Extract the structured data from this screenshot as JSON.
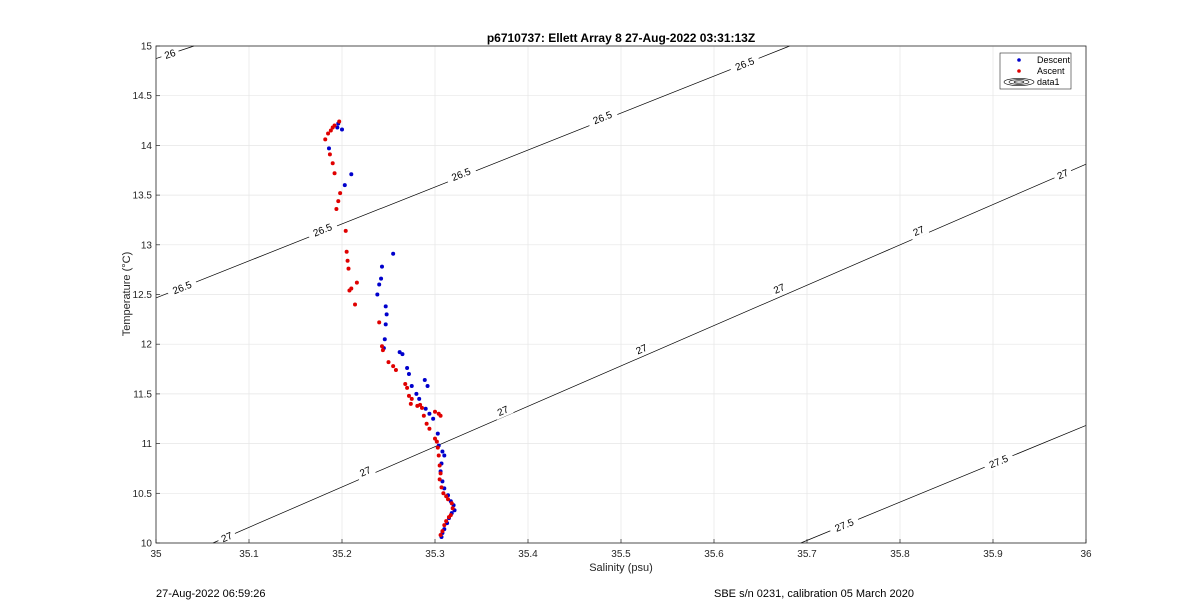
{
  "chart_data": {
    "type": "scatter",
    "title": "p6710737: Ellett Array 8 27-Aug-2022 03:31:13Z",
    "xlabel": "Salinity (psu)",
    "ylabel": "Temperature (°C)",
    "xlim": [
      35,
      36
    ],
    "ylim": [
      10,
      15
    ],
    "xticks": [
      "35",
      "35.1",
      "35.2",
      "35.3",
      "35.4",
      "35.5",
      "35.6",
      "35.7",
      "35.8",
      "35.9",
      "36"
    ],
    "yticks": [
      "10",
      "10.5",
      "11",
      "11.5",
      "12",
      "12.5",
      "13",
      "13.5",
      "14",
      "14.5",
      "15"
    ],
    "grid": true,
    "legend_position": "top-right",
    "legend": [
      "Descent",
      "Ascent",
      "data1"
    ],
    "series": [
      {
        "name": "Descent",
        "color": "#0000cc",
        "points": [
          [
            35.196,
            14.22
          ],
          [
            35.195,
            14.18
          ],
          [
            35.2,
            14.16
          ],
          [
            35.186,
            13.97
          ],
          [
            35.203,
            13.6
          ],
          [
            35.21,
            13.71
          ],
          [
            35.255,
            12.91
          ],
          [
            35.243,
            12.78
          ],
          [
            35.242,
            12.66
          ],
          [
            35.24,
            12.6
          ],
          [
            35.238,
            12.5
          ],
          [
            35.247,
            12.38
          ],
          [
            35.248,
            12.3
          ],
          [
            35.247,
            12.2
          ],
          [
            35.246,
            12.05
          ],
          [
            35.245,
            11.96
          ],
          [
            35.262,
            11.92
          ],
          [
            35.265,
            11.9
          ],
          [
            35.27,
            11.76
          ],
          [
            35.272,
            11.7
          ],
          [
            35.275,
            11.58
          ],
          [
            35.28,
            11.5
          ],
          [
            35.283,
            11.45
          ],
          [
            35.289,
            11.64
          ],
          [
            35.292,
            11.58
          ],
          [
            35.29,
            11.35
          ],
          [
            35.294,
            11.3
          ],
          [
            35.298,
            11.25
          ],
          [
            35.303,
            11.1
          ],
          [
            35.304,
            10.98
          ],
          [
            35.308,
            10.92
          ],
          [
            35.31,
            10.88
          ],
          [
            35.307,
            10.8
          ],
          [
            35.306,
            10.72
          ],
          [
            35.308,
            10.62
          ],
          [
            35.31,
            10.55
          ],
          [
            35.314,
            10.48
          ],
          [
            35.317,
            10.42
          ],
          [
            35.32,
            10.38
          ],
          [
            35.321,
            10.33
          ],
          [
            35.318,
            10.3
          ],
          [
            35.315,
            10.25
          ],
          [
            35.313,
            10.2
          ],
          [
            35.31,
            10.14
          ],
          [
            35.308,
            10.1
          ],
          [
            35.307,
            10.06
          ]
        ]
      },
      {
        "name": "Ascent",
        "color": "#e00000",
        "points": [
          [
            35.197,
            14.24
          ],
          [
            35.192,
            14.2
          ],
          [
            35.19,
            14.18
          ],
          [
            35.188,
            14.15
          ],
          [
            35.185,
            14.12
          ],
          [
            35.182,
            14.06
          ],
          [
            35.187,
            13.91
          ],
          [
            35.19,
            13.82
          ],
          [
            35.192,
            13.72
          ],
          [
            35.198,
            13.52
          ],
          [
            35.196,
            13.44
          ],
          [
            35.194,
            13.36
          ],
          [
            35.204,
            13.14
          ],
          [
            35.205,
            12.93
          ],
          [
            35.206,
            12.84
          ],
          [
            35.207,
            12.76
          ],
          [
            35.208,
            12.54
          ],
          [
            35.21,
            12.56
          ],
          [
            35.216,
            12.62
          ],
          [
            35.214,
            12.4
          ],
          [
            35.24,
            12.22
          ],
          [
            35.243,
            11.98
          ],
          [
            35.244,
            11.94
          ],
          [
            35.25,
            11.82
          ],
          [
            35.255,
            11.78
          ],
          [
            35.258,
            11.74
          ],
          [
            35.268,
            11.6
          ],
          [
            35.27,
            11.56
          ],
          [
            35.272,
            11.48
          ],
          [
            35.274,
            11.4
          ],
          [
            35.275,
            11.45
          ],
          [
            35.281,
            11.38
          ],
          [
            35.284,
            11.39
          ],
          [
            35.286,
            11.36
          ],
          [
            35.288,
            11.28
          ],
          [
            35.291,
            11.2
          ],
          [
            35.294,
            11.15
          ],
          [
            35.3,
            11.32
          ],
          [
            35.304,
            11.3
          ],
          [
            35.306,
            11.28
          ],
          [
            35.3,
            11.05
          ],
          [
            35.302,
            11.02
          ],
          [
            35.303,
            10.96
          ],
          [
            35.304,
            10.88
          ],
          [
            35.305,
            10.78
          ],
          [
            35.306,
            10.7
          ],
          [
            35.305,
            10.64
          ],
          [
            35.307,
            10.56
          ],
          [
            35.309,
            10.5
          ],
          [
            35.312,
            10.47
          ],
          [
            35.314,
            10.44
          ],
          [
            35.318,
            10.4
          ],
          [
            35.319,
            10.35
          ],
          [
            35.317,
            10.28
          ],
          [
            35.315,
            10.26
          ],
          [
            35.312,
            10.22
          ],
          [
            35.31,
            10.18
          ],
          [
            35.308,
            10.12
          ],
          [
            35.306,
            10.08
          ]
        ]
      }
    ],
    "contours": [
      {
        "level": "26",
        "labels": [
          {
            "text": "26",
            "x": 35.015,
            "y": 14.92
          }
        ]
      },
      {
        "level": "26.5",
        "labels": [
          {
            "text": "26.5",
            "x": 35.028,
            "y": 12.57
          },
          {
            "text": "26.5",
            "x": 35.179,
            "y": 13.15
          },
          {
            "text": "26.5",
            "x": 35.328,
            "y": 13.71
          },
          {
            "text": "26.5",
            "x": 35.48,
            "y": 14.28
          },
          {
            "text": "26.5",
            "x": 35.633,
            "y": 14.82
          }
        ]
      },
      {
        "level": "27",
        "labels": [
          {
            "text": "27",
            "x": 35.076,
            "y": 10.06
          },
          {
            "text": "27",
            "x": 35.225,
            "y": 10.72
          },
          {
            "text": "27",
            "x": 35.373,
            "y": 11.33
          },
          {
            "text": "27",
            "x": 35.522,
            "y": 11.95
          },
          {
            "text": "27",
            "x": 35.67,
            "y": 12.56
          },
          {
            "text": "27",
            "x": 35.82,
            "y": 13.14
          },
          {
            "text": "27",
            "x": 35.975,
            "y": 13.71
          }
        ]
      },
      {
        "level": "27.5",
        "labels": [
          {
            "text": "27.5",
            "x": 35.74,
            "y": 10.18
          },
          {
            "text": "27.5",
            "x": 35.906,
            "y": 10.82
          }
        ]
      }
    ]
  },
  "footer": {
    "left": "27-Aug-2022 06:59:26",
    "right": "SBE s/n 0231, calibration 05 March 2020"
  }
}
